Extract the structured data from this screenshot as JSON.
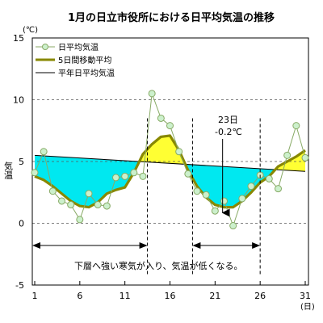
{
  "chart_data": {
    "type": "line",
    "title": "1月の日立市役所における日平均気温の推移",
    "ylabel": "気温",
    "y_unit": "(℃)",
    "x_unit": "(日)",
    "xlim": [
      1,
      31
    ],
    "ylim": [
      -5,
      15
    ],
    "x_ticks": [
      1,
      6,
      11,
      16,
      21,
      26,
      31
    ],
    "y_ticks": [
      -5,
      0,
      5,
      10,
      15
    ],
    "grid": "horizontal-dashed",
    "legend_position": "top-left",
    "colors": {
      "daily": "#88aa66",
      "daily_marker_fill": "#ccf0cc",
      "moving": "#888800",
      "normal": "#000000",
      "below_fill": "#00e8f0",
      "above_fill": "#ffff33"
    },
    "series": [
      {
        "name": "日平均気温",
        "x": [
          1,
          2,
          3,
          4,
          5,
          6,
          7,
          8,
          9,
          10,
          11,
          12,
          13,
          14,
          15,
          16,
          17,
          18,
          19,
          20,
          21,
          22,
          23,
          24,
          25,
          26,
          27,
          28,
          29,
          30,
          31
        ],
        "values": [
          4.1,
          5.8,
          2.6,
          1.8,
          1.5,
          0.3,
          2.4,
          1.5,
          1.4,
          3.7,
          3.8,
          4.1,
          3.8,
          10.5,
          8.5,
          7.9,
          5.8,
          4.0,
          2.6,
          2.3,
          1.0,
          1.8,
          -0.2,
          2.0,
          3.0,
          3.9,
          3.6,
          2.8,
          5.5,
          7.9,
          5.3
        ]
      },
      {
        "name": "5日間移動平均",
        "x": [
          1,
          2,
          3,
          4,
          5,
          6,
          7,
          8,
          9,
          10,
          11,
          12,
          13,
          14,
          15,
          16,
          17,
          18,
          19,
          20,
          21,
          22,
          23,
          24,
          25,
          26,
          27,
          28,
          29,
          30,
          31
        ],
        "values": [
          3.8,
          3.5,
          3.0,
          2.4,
          1.8,
          1.4,
          1.3,
          1.7,
          2.4,
          2.7,
          2.9,
          4.1,
          5.6,
          6.4,
          7.0,
          7.1,
          5.9,
          4.3,
          3.0,
          2.1,
          1.5,
          1.3,
          1.3,
          1.8,
          2.5,
          3.3,
          3.8,
          4.6,
          5.0,
          5.4,
          5.9
        ]
      },
      {
        "name": "平年日平均気温",
        "x": [
          1,
          31
        ],
        "values": [
          5.5,
          4.2
        ]
      }
    ],
    "annotations": {
      "callout_day": "23日",
      "callout_value": "-0.2℃",
      "caption": "下層へ強い寒気が入り、気温が低くなる。",
      "periods": [
        [
          1,
          13.5
        ],
        [
          18.5,
          26
        ]
      ]
    }
  }
}
